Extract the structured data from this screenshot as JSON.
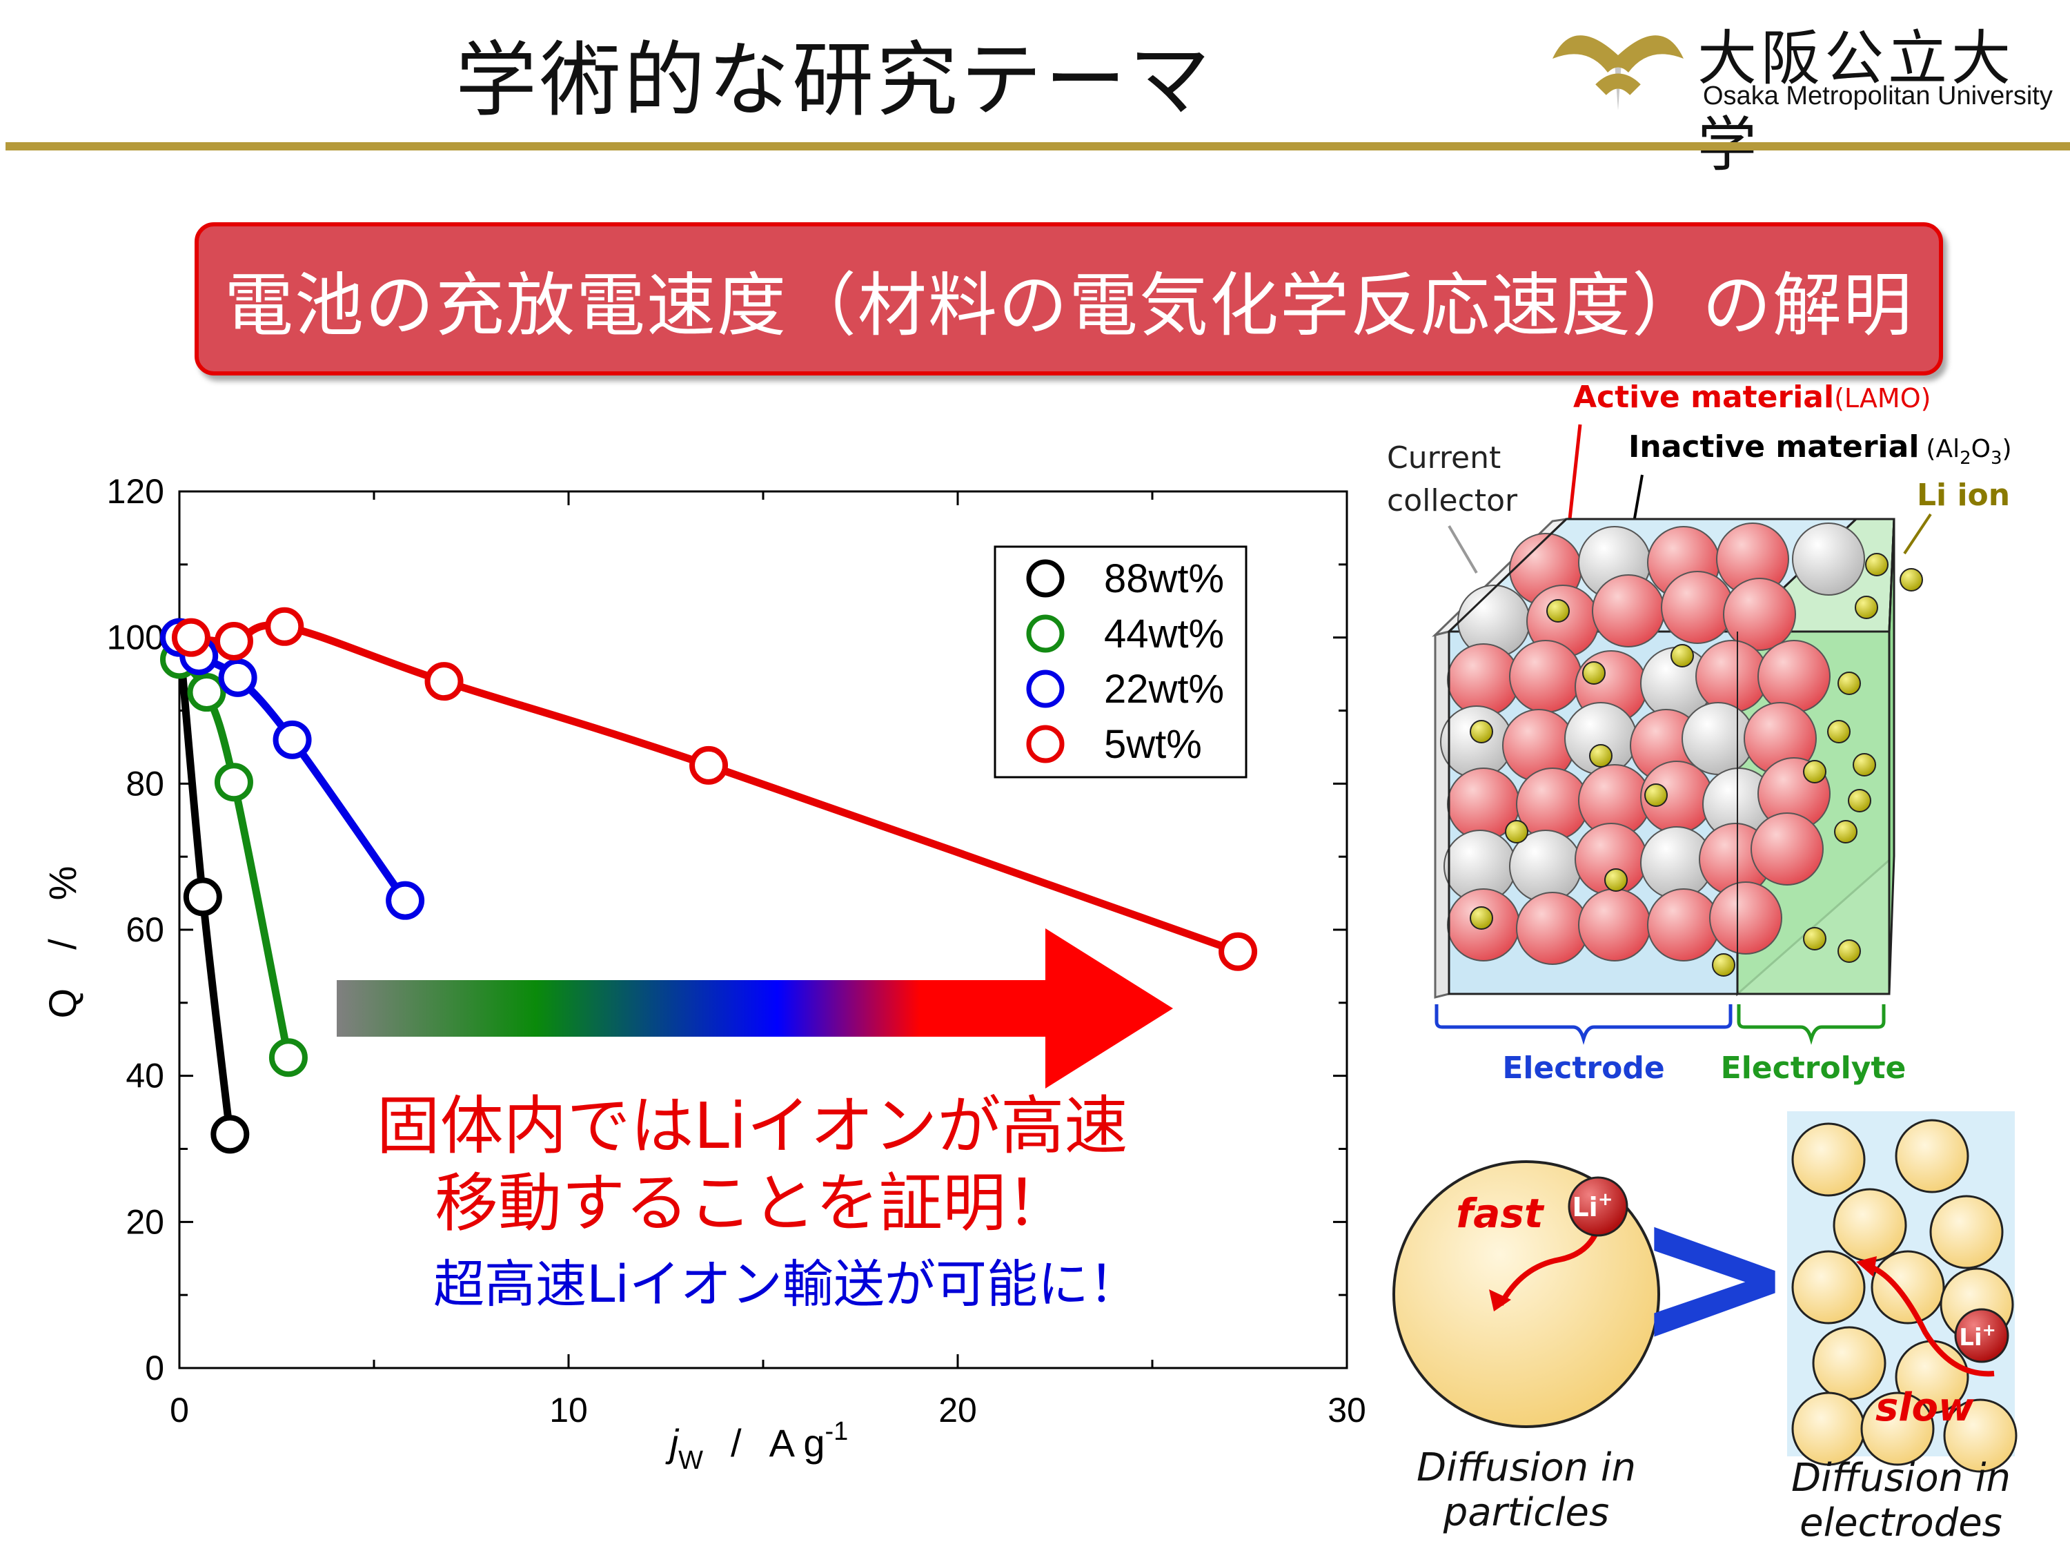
{
  "header": {
    "title": "学術的な研究テーマ",
    "logo_jp": "大阪公立大学",
    "logo_en": "Osaka Metropolitan University"
  },
  "banner": {
    "text": "電池の充放電速度（材料の電気化学反応速度）の解明"
  },
  "chart_data": {
    "type": "line",
    "xlabel_var": "j",
    "xlabel_sub": "W",
    "xlabel_unit": "A g",
    "xlabel_sup": "-1",
    "ylabel": "Q　/　%",
    "xlim": [
      0,
      30
    ],
    "ylim": [
      0,
      120
    ],
    "x_ticks": [
      "0",
      "10",
      "20",
      "30"
    ],
    "y_ticks": [
      "0",
      "20",
      "40",
      "60",
      "80",
      "100",
      "120"
    ],
    "legend_position": "top-right",
    "series": [
      {
        "name": "88wt%",
        "color": "#000000",
        "x": [
          0,
          0.6,
          1.3
        ],
        "y": [
          100,
          64.5,
          32
        ]
      },
      {
        "name": "44wt%",
        "color": "#138a13",
        "x": [
          0,
          0.7,
          1.4,
          2.8
        ],
        "y": [
          97,
          92.5,
          80.2,
          42.5
        ]
      },
      {
        "name": "22wt%",
        "color": "#0000e6",
        "x": [
          0,
          0.5,
          1.5,
          2.9,
          5.8
        ],
        "y": [
          100,
          97.5,
          94.5,
          86,
          64
        ]
      },
      {
        "name": "5wt%",
        "color": "#e60000",
        "x": [
          0.3,
          1.4,
          2.7,
          6.8,
          13.6,
          27.2
        ],
        "y": [
          100,
          99.5,
          101.5,
          94,
          82.5,
          57
        ]
      }
    ]
  },
  "annotations": {
    "claim_line1": "固体内ではLiイオンが高速",
    "claim_line2": "移動することを証明！",
    "claim_line3": "超高速Liイオン輸送が可能に！"
  },
  "electrode_figure": {
    "active_material": "Active material",
    "active_material_sub": "(LAMO)",
    "inactive_material": "Inactive material",
    "inactive_material_sub_prefix": "(Al",
    "inactive_material_sub_2": "2",
    "inactive_material_sub_O": "O",
    "inactive_material_sub_3": "3",
    "inactive_material_sub_suffix": ")",
    "current_collector_1": "Current",
    "current_collector_2": "collector",
    "li_ion": "Li ion",
    "electrode": "Electrode",
    "electrolyte": "Electrolyte"
  },
  "diffusion_figure": {
    "fast": "fast",
    "slow": "slow",
    "li_plus": "Li",
    "plus": "+",
    "greater": ">",
    "particles_1": "Diffusion in",
    "particles_2": "particles",
    "electrodes_1": "Diffusion in",
    "electrodes_2": "electrodes"
  },
  "colors": {
    "gold": "#b59a3b",
    "banner_bg": "#d84b55",
    "active_red": "#e64b4b",
    "electrode_label": "#1a3fd6",
    "electrolyte_label": "#1f9a1f",
    "li_ion_label": "#8a7a00"
  }
}
